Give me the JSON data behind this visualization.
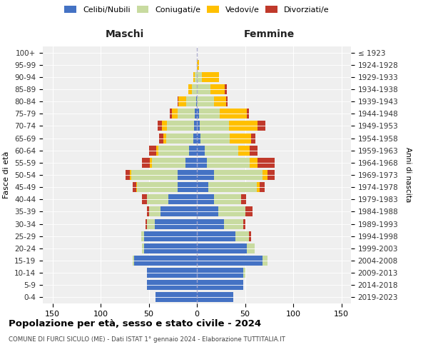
{
  "age_groups": [
    "0-4",
    "5-9",
    "10-14",
    "15-19",
    "20-24",
    "25-29",
    "30-34",
    "35-39",
    "40-44",
    "45-49",
    "50-54",
    "55-59",
    "60-64",
    "65-69",
    "70-74",
    "75-79",
    "80-84",
    "85-89",
    "90-94",
    "95-99",
    "100+"
  ],
  "birth_years": [
    "2019-2023",
    "2014-2018",
    "2009-2013",
    "2004-2008",
    "1999-2003",
    "1994-1998",
    "1989-1993",
    "1984-1988",
    "1979-1983",
    "1974-1978",
    "1969-1973",
    "1964-1968",
    "1959-1963",
    "1954-1958",
    "1949-1953",
    "1944-1948",
    "1939-1943",
    "1934-1938",
    "1929-1933",
    "1924-1928",
    "≤ 1923"
  ],
  "male_celibi": [
    43,
    52,
    52,
    65,
    55,
    55,
    44,
    38,
    30,
    20,
    20,
    12,
    8,
    4,
    3,
    2,
    1,
    0,
    0,
    0,
    0
  ],
  "male_coniugati": [
    0,
    0,
    0,
    2,
    2,
    3,
    8,
    12,
    22,
    42,
    48,
    35,
    32,
    28,
    28,
    18,
    10,
    5,
    2,
    0,
    0
  ],
  "male_vedovi": [
    0,
    0,
    0,
    0,
    0,
    0,
    0,
    0,
    0,
    1,
    2,
    2,
    2,
    3,
    5,
    6,
    8,
    4,
    2,
    0,
    0
  ],
  "male_divorziati": [
    0,
    0,
    0,
    0,
    0,
    0,
    1,
    2,
    5,
    4,
    4,
    8,
    8,
    4,
    5,
    2,
    1,
    0,
    0,
    0,
    0
  ],
  "fem_nubili": [
    38,
    48,
    48,
    68,
    52,
    40,
    28,
    22,
    18,
    12,
    18,
    10,
    8,
    4,
    3,
    2,
    0,
    0,
    0,
    0,
    0
  ],
  "fem_coniugate": [
    0,
    0,
    2,
    5,
    8,
    14,
    20,
    28,
    28,
    50,
    50,
    45,
    35,
    30,
    30,
    22,
    18,
    14,
    5,
    0,
    0
  ],
  "fem_vedove": [
    0,
    0,
    0,
    0,
    0,
    0,
    0,
    0,
    0,
    3,
    5,
    8,
    12,
    22,
    30,
    28,
    12,
    15,
    18,
    2,
    0
  ],
  "fem_divorziate": [
    0,
    0,
    0,
    0,
    0,
    2,
    2,
    8,
    5,
    5,
    8,
    18,
    8,
    5,
    8,
    2,
    2,
    2,
    0,
    0,
    0
  ],
  "colors": {
    "celibi": "#4472c4",
    "coniugati": "#c8dba0",
    "vedovi": "#ffc000",
    "divorziati": "#c0392b"
  },
  "title": "Popolazione per età, sesso e stato civile - 2024",
  "subtitle": "COMUNE DI FURCI SICULO (ME) - Dati ISTAT 1° gennaio 2024 - Elaborazione TUTTITALIA.IT",
  "xlabel_left": "Maschi",
  "xlabel_right": "Femmine",
  "ylabel_left": "Fasce di età",
  "ylabel_right": "Anni di nascita",
  "xlim": 160,
  "bg_color": "#efefef",
  "legend_labels": [
    "Celibi/Nubili",
    "Coniugati/e",
    "Vedovi/e",
    "Divorziati/e"
  ]
}
